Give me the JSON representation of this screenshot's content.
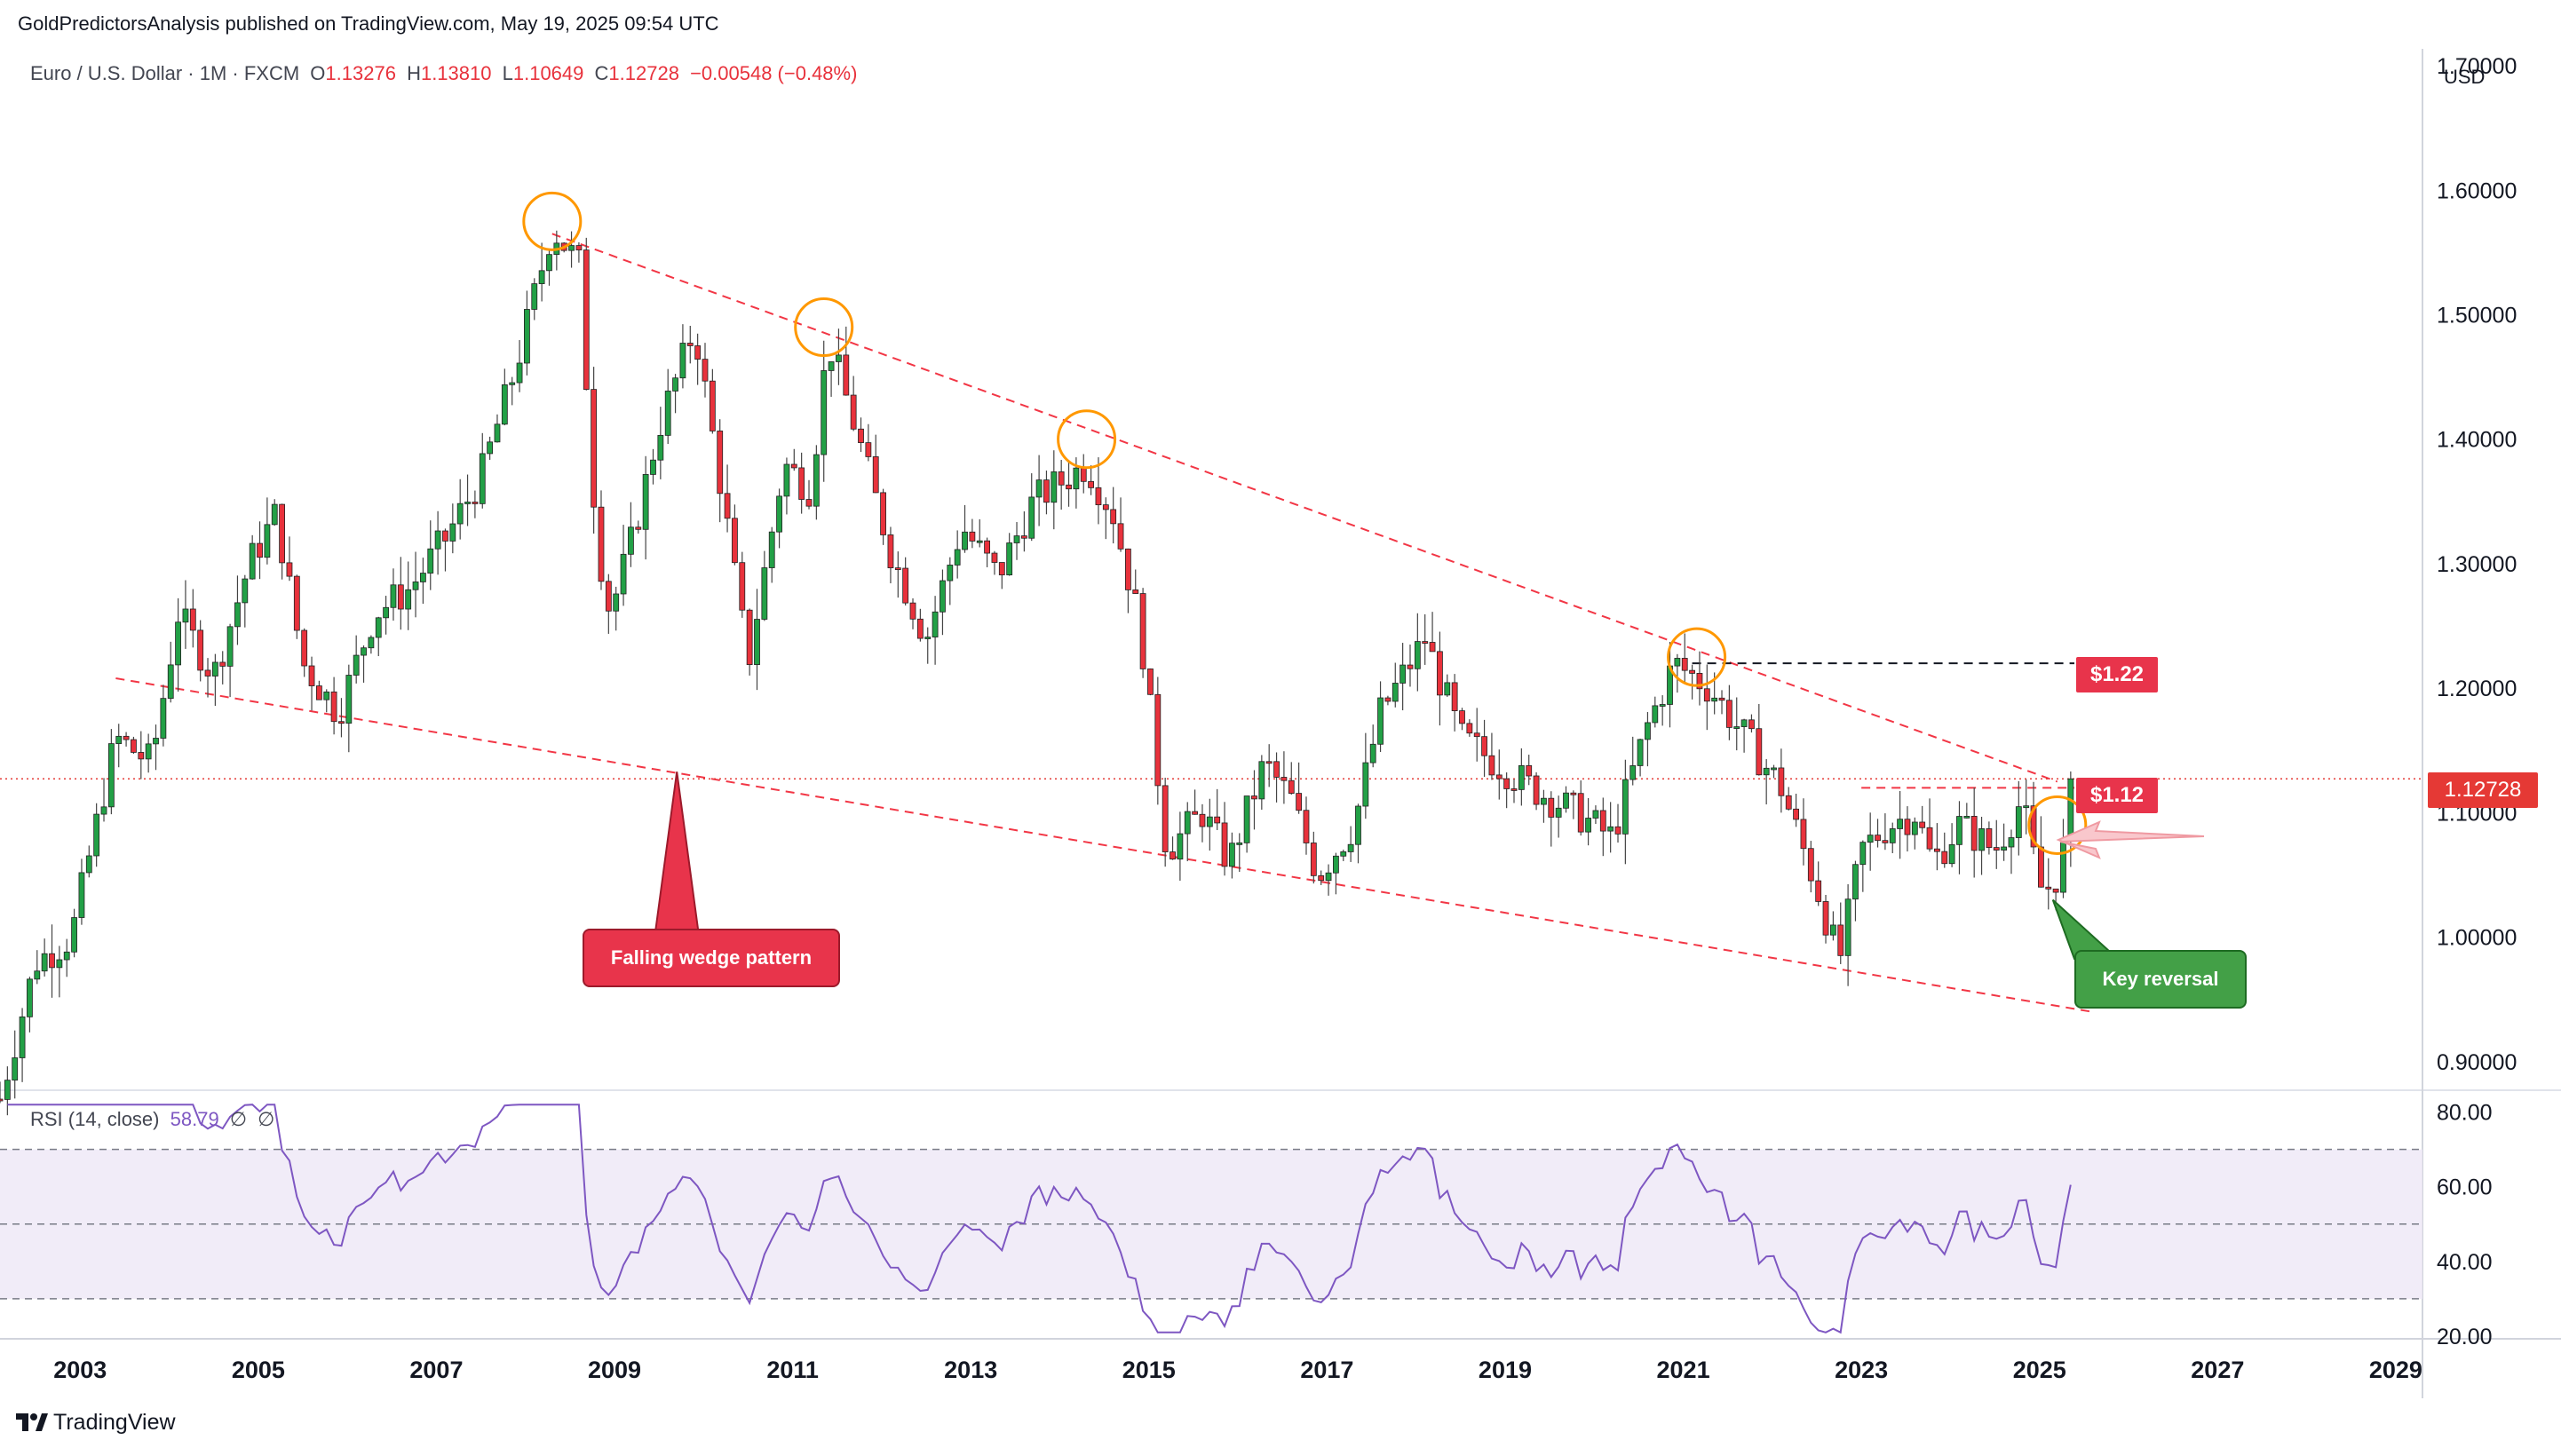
{
  "header": {
    "publisher": "GoldPredictorsAnalysis published on TradingView.com, May 19, 2025 09:54 UTC",
    "symbol": "Euro / U.S. Dollar · 1M · FXCM",
    "o_label": "O",
    "o_value": "1.13276",
    "h_label": "H",
    "h_value": "1.13810",
    "l_label": "L",
    "l_value": "1.10649",
    "c_label": "C",
    "c_value": "1.12728",
    "change": "−0.00548 (−0.48%)",
    "currency": "USD"
  },
  "footer": {
    "brand": "TradingView",
    "logo_icon": "tradingview-logo-icon"
  },
  "annotations": {
    "wedge_label": "Falling wedge pattern",
    "reversal_label": "Key reversal",
    "resistance_label": "$1.22",
    "support_label": "$1.12",
    "last_price": "1.12728"
  },
  "colors": {
    "up": "#22a046",
    "down": "#e8323c",
    "wedge": "#f23645",
    "circle": "#ff9800",
    "rsi": "#7e57c2",
    "rsi_band": "#ede7f6",
    "green_label": "#43a047",
    "red_label": "#e8344b",
    "price_line": "#e53935"
  },
  "chart_data": [
    {
      "type": "candlestick",
      "title": "Euro / U.S. Dollar · 1M · FXCM",
      "x_axis_ticks": [
        "2003",
        "2005",
        "2007",
        "2009",
        "2011",
        "2013",
        "2015",
        "2017",
        "2019",
        "2021",
        "2023",
        "2025",
        "2027",
        "2029"
      ],
      "y_axis_ticks": [
        "0.90000",
        "1.00000",
        "1.10000",
        "1.20000",
        "1.30000",
        "1.40000",
        "1.50000",
        "1.60000",
        "1.70000"
      ],
      "ylim": [
        0.88,
        1.71
      ],
      "xlim": [
        2002.1,
        2029.3
      ],
      "price_path": [
        [
          2002.1,
          0.87
        ],
        [
          2002.5,
          0.98
        ],
        [
          2002.9,
          1.0
        ],
        [
          2003.4,
          1.16
        ],
        [
          2003.8,
          1.14
        ],
        [
          2004.1,
          1.26
        ],
        [
          2004.5,
          1.21
        ],
        [
          2004.9,
          1.3
        ],
        [
          2005.2,
          1.34
        ],
        [
          2005.5,
          1.22
        ],
        [
          2005.9,
          1.18
        ],
        [
          2006.3,
          1.26
        ],
        [
          2006.7,
          1.28
        ],
        [
          2007.1,
          1.32
        ],
        [
          2007.5,
          1.37
        ],
        [
          2007.9,
          1.46
        ],
        [
          2008.3,
          1.57
        ],
        [
          2008.6,
          1.54
        ],
        [
          2008.8,
          1.32
        ],
        [
          2008.95,
          1.26
        ],
        [
          2009.2,
          1.32
        ],
        [
          2009.5,
          1.41
        ],
        [
          2009.9,
          1.49
        ],
        [
          2010.2,
          1.36
        ],
        [
          2010.5,
          1.22
        ],
        [
          2010.9,
          1.38
        ],
        [
          2011.2,
          1.36
        ],
        [
          2011.4,
          1.48
        ],
        [
          2011.7,
          1.41
        ],
        [
          2012.1,
          1.31
        ],
        [
          2012.5,
          1.24
        ],
        [
          2012.9,
          1.33
        ],
        [
          2013.3,
          1.29
        ],
        [
          2013.7,
          1.35
        ],
        [
          2014.3,
          1.38
        ],
        [
          2014.6,
          1.34
        ],
        [
          2014.9,
          1.25
        ],
        [
          2015.2,
          1.07
        ],
        [
          2015.6,
          1.1
        ],
        [
          2015.9,
          1.06
        ],
        [
          2016.3,
          1.14
        ],
        [
          2016.6,
          1.11
        ],
        [
          2016.9,
          1.05
        ],
        [
          2017.3,
          1.09
        ],
        [
          2017.6,
          1.18
        ],
        [
          2018.1,
          1.24
        ],
        [
          2018.5,
          1.16
        ],
        [
          2018.9,
          1.14
        ],
        [
          2019.3,
          1.12
        ],
        [
          2019.8,
          1.1
        ],
        [
          2020.2,
          1.08
        ],
        [
          2020.6,
          1.17
        ],
        [
          2020.9,
          1.22
        ],
        [
          2021.3,
          1.2
        ],
        [
          2021.7,
          1.16
        ],
        [
          2022.1,
          1.12
        ],
        [
          2022.5,
          1.04
        ],
        [
          2022.75,
          0.98
        ],
        [
          2023.0,
          1.07
        ],
        [
          2023.3,
          1.09
        ],
        [
          2023.6,
          1.1
        ],
        [
          2023.8,
          1.06
        ],
        [
          2024.1,
          1.09
        ],
        [
          2024.5,
          1.07
        ],
        [
          2024.8,
          1.11
        ],
        [
          2025.0,
          1.04
        ],
        [
          2025.15,
          1.04
        ],
        [
          2025.3,
          1.08
        ],
        [
          2025.4,
          1.13
        ]
      ],
      "last_close": 1.12728,
      "wedge_upper": [
        [
          2008.3,
          1.565
        ],
        [
          2025.2,
          1.125
        ]
      ],
      "wedge_lower": [
        [
          2003.4,
          1.208
        ],
        [
          2025.6,
          0.94
        ]
      ],
      "resistance": 1.22,
      "support": 1.12,
      "highlight_points": [
        [
          2008.3,
          1.575
        ],
        [
          2011.35,
          1.49
        ],
        [
          2014.3,
          1.4
        ],
        [
          2021.15,
          1.225
        ],
        [
          2025.2,
          1.09
        ]
      ]
    },
    {
      "type": "line",
      "title": "RSI (14, close)",
      "last_value": "58.79",
      "extra_values": [
        "∅",
        "∅"
      ],
      "y_axis_ticks": [
        "20.00",
        "40.00",
        "60.00",
        "80.00"
      ],
      "ylim": [
        20,
        83
      ],
      "upper_band": 70,
      "middle_band": 50,
      "lower_band": 30
    }
  ]
}
